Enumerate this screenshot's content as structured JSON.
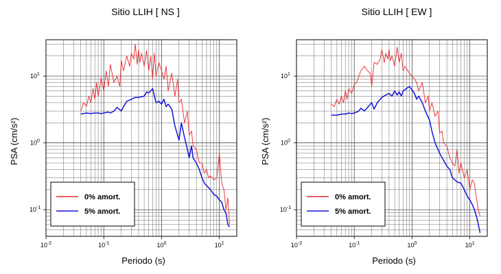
{
  "chart_data": [
    {
      "type": "line",
      "title": "Sitio LLIH [ NS ]",
      "xlabel": "Periodo (s)",
      "ylabel": "PSA (cm/s²)",
      "x_scale": "log",
      "y_scale": "log",
      "xlim": [
        0.01,
        20
      ],
      "ylim": [
        0.04,
        35
      ],
      "grid": true,
      "legend_position": "bottom-left",
      "x_ticks": [
        {
          "base": "10",
          "exp": "-2"
        },
        {
          "base": "10",
          "exp": "-1"
        },
        {
          "base": "10",
          "exp": "0"
        },
        {
          "base": "10",
          "exp": "1"
        }
      ],
      "y_ticks": [
        {
          "base": "10",
          "exp": "-1"
        },
        {
          "base": "10",
          "exp": "0"
        },
        {
          "base": "10",
          "exp": "1"
        }
      ],
      "series": [
        {
          "name": "0% amort.",
          "color": "#e8262b",
          "x": [
            0.04,
            0.045,
            0.05,
            0.055,
            0.06,
            0.065,
            0.07,
            0.075,
            0.08,
            0.09,
            0.1,
            0.11,
            0.12,
            0.13,
            0.15,
            0.17,
            0.19,
            0.2,
            0.22,
            0.25,
            0.28,
            0.3,
            0.33,
            0.35,
            0.38,
            0.4,
            0.42,
            0.45,
            0.5,
            0.55,
            0.6,
            0.65,
            0.7,
            0.75,
            0.8,
            0.9,
            1.0,
            1.1,
            1.2,
            1.3,
            1.5,
            1.7,
            1.9,
            2.0,
            2.2,
            2.5,
            2.8,
            3.0,
            3.3,
            3.5,
            4.0,
            4.5,
            5.0,
            5.5,
            6.0,
            6.5,
            7.0,
            8.0,
            9.0,
            10.0,
            11.0,
            12.0,
            13.0,
            14.0,
            15.0
          ],
          "y": [
            3.0,
            4.0,
            3.5,
            5.0,
            4.0,
            6.5,
            4.5,
            8.0,
            5.0,
            9.5,
            6.0,
            12.0,
            7.0,
            15.0,
            8.0,
            10.0,
            7.0,
            17.0,
            12.0,
            20.0,
            14.0,
            22.0,
            18.0,
            30.0,
            15.0,
            25.0,
            16.0,
            22.0,
            14.0,
            24.0,
            12.0,
            20.0,
            9.0,
            22.0,
            10.0,
            16.0,
            12.0,
            9.0,
            14.0,
            6.0,
            11.0,
            5.0,
            9.0,
            4.0,
            4.5,
            2.0,
            3.0,
            1.3,
            1.5,
            0.9,
            0.8,
            0.5,
            0.5,
            0.35,
            0.4,
            0.3,
            0.32,
            0.28,
            0.3,
            0.7,
            0.25,
            0.2,
            0.1,
            0.15,
            0.06
          ]
        },
        {
          "name": "5% amort.",
          "color": "#1212d8",
          "x": [
            0.04,
            0.05,
            0.06,
            0.07,
            0.08,
            0.09,
            0.1,
            0.12,
            0.13,
            0.15,
            0.17,
            0.2,
            0.22,
            0.25,
            0.3,
            0.35,
            0.4,
            0.45,
            0.5,
            0.55,
            0.6,
            0.65,
            0.7,
            0.8,
            0.9,
            1.0,
            1.1,
            1.2,
            1.3,
            1.5,
            1.7,
            2.0,
            2.2,
            2.5,
            2.8,
            3.0,
            3.3,
            3.5,
            4.0,
            4.5,
            5.0,
            5.5,
            6.0,
            7.0,
            8.0,
            9.0,
            10.0,
            11.0,
            12.0,
            13.0,
            14.0,
            15.0
          ],
          "y": [
            2.7,
            2.8,
            2.75,
            2.8,
            2.8,
            2.75,
            2.8,
            2.9,
            2.8,
            3.0,
            3.4,
            3.0,
            3.5,
            4.2,
            4.5,
            4.8,
            4.8,
            4.9,
            5.0,
            5.8,
            5.6,
            6.0,
            6.5,
            4.0,
            4.2,
            3.8,
            4.5,
            3.5,
            3.8,
            3.2,
            1.8,
            1.1,
            2.0,
            1.2,
            0.8,
            0.6,
            0.9,
            0.6,
            0.5,
            0.4,
            0.3,
            0.25,
            0.23,
            0.2,
            0.17,
            0.16,
            0.14,
            0.13,
            0.1,
            0.09,
            0.06,
            0.055
          ]
        }
      ]
    },
    {
      "type": "line",
      "title": "Sitio LLIH [ EW ]",
      "xlabel": "Periodo (s)",
      "ylabel": "PSA (cm/s²)",
      "x_scale": "log",
      "y_scale": "log",
      "xlim": [
        0.01,
        20
      ],
      "ylim": [
        0.04,
        35
      ],
      "grid": true,
      "legend_position": "bottom-left",
      "x_ticks": [
        {
          "base": "10",
          "exp": "-2"
        },
        {
          "base": "10",
          "exp": "-1"
        },
        {
          "base": "10",
          "exp": "0"
        },
        {
          "base": "10",
          "exp": "1"
        }
      ],
      "y_ticks": [
        {
          "base": "10",
          "exp": "-1"
        },
        {
          "base": "10",
          "exp": "0"
        },
        {
          "base": "10",
          "exp": "1"
        }
      ],
      "series": [
        {
          "name": "0% amort.",
          "color": "#e8262b",
          "x": [
            0.04,
            0.045,
            0.05,
            0.055,
            0.06,
            0.065,
            0.07,
            0.075,
            0.08,
            0.09,
            0.1,
            0.11,
            0.12,
            0.13,
            0.15,
            0.17,
            0.19,
            0.2,
            0.22,
            0.25,
            0.28,
            0.3,
            0.33,
            0.35,
            0.38,
            0.4,
            0.42,
            0.45,
            0.5,
            0.55,
            0.6,
            0.65,
            0.7,
            0.75,
            0.8,
            0.9,
            1.0,
            1.1,
            1.2,
            1.3,
            1.5,
            1.7,
            1.9,
            2.0,
            2.2,
            2.5,
            2.8,
            3.0,
            3.3,
            3.5,
            4.0,
            4.5,
            5.0,
            5.5,
            6.0,
            6.5,
            7.0,
            8.0,
            9.0,
            10.0,
            11.0,
            12.0,
            13.0,
            14.0,
            15.0
          ],
          "y": [
            3.8,
            3.5,
            4.5,
            3.8,
            5.0,
            4.0,
            6.0,
            4.5,
            6.5,
            5.5,
            7.5,
            8.0,
            10.0,
            12.0,
            14.0,
            12.0,
            11.0,
            7.0,
            16.0,
            15.0,
            18.0,
            25.0,
            16.0,
            22.0,
            18.0,
            25.0,
            17.0,
            20.0,
            14.0,
            27.0,
            16.0,
            22.0,
            12.0,
            14.0,
            13.0,
            11.0,
            10.0,
            9.0,
            8.0,
            6.0,
            8.0,
            4.0,
            5.0,
            3.0,
            4.0,
            2.5,
            3.0,
            1.4,
            1.5,
            1.0,
            0.9,
            0.6,
            0.5,
            0.45,
            0.8,
            0.35,
            0.5,
            0.3,
            0.4,
            0.2,
            0.28,
            0.25,
            0.15,
            0.1,
            0.08
          ]
        },
        {
          "name": "5% amort.",
          "color": "#1212d8",
          "x": [
            0.04,
            0.05,
            0.06,
            0.07,
            0.08,
            0.09,
            0.1,
            0.12,
            0.13,
            0.15,
            0.17,
            0.2,
            0.22,
            0.25,
            0.3,
            0.35,
            0.4,
            0.45,
            0.5,
            0.55,
            0.6,
            0.65,
            0.7,
            0.8,
            0.9,
            1.0,
            1.1,
            1.2,
            1.3,
            1.5,
            1.7,
            2.0,
            2.2,
            2.5,
            2.8,
            3.0,
            3.3,
            3.5,
            4.0,
            4.5,
            5.0,
            5.5,
            6.0,
            7.0,
            8.0,
            9.0,
            10.0,
            11.0,
            12.0,
            13.0,
            14.0,
            15.0
          ],
          "y": [
            2.6,
            2.6,
            2.7,
            2.7,
            2.8,
            2.75,
            2.8,
            3.0,
            3.3,
            3.0,
            3.4,
            4.0,
            3.2,
            4.0,
            4.8,
            5.2,
            5.5,
            5.0,
            6.0,
            5.2,
            5.8,
            5.0,
            6.0,
            6.5,
            7.0,
            6.2,
            5.5,
            4.5,
            5.0,
            4.0,
            3.0,
            2.2,
            1.5,
            1.0,
            0.8,
            0.7,
            0.6,
            0.55,
            0.45,
            0.4,
            0.3,
            0.28,
            0.26,
            0.25,
            0.2,
            0.16,
            0.14,
            0.12,
            0.1,
            0.08,
            0.06,
            0.045
          ]
        }
      ]
    }
  ]
}
